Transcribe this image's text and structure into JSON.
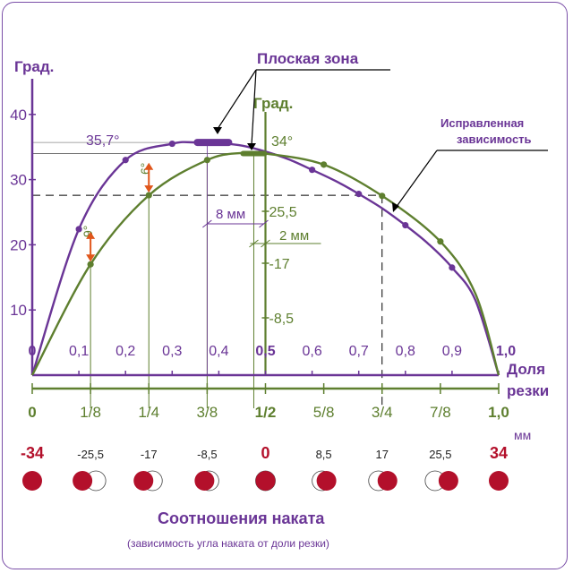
{
  "colors": {
    "purple": "#6a3596",
    "green": "#5e7f2f",
    "orange": "#e0561b",
    "ball_red": "#b3102b",
    "grid_gray": "#8a8a8a"
  },
  "chart_data": {
    "type": "line",
    "y_axis_label": "Град.",
    "y_ticks": [
      "40",
      "30",
      "20",
      "10"
    ],
    "y_tick_values": [
      40,
      30,
      20,
      10
    ],
    "ylim": [
      0,
      45
    ],
    "x_axis_label_line1": "Доля",
    "x_axis_label_line2": "резки",
    "x_ticks": [
      "0",
      "0,1",
      "0,2",
      "0,3",
      "0,4",
      "0,5",
      "0,6",
      "0,7",
      "0,8",
      "0,9",
      "1,0"
    ],
    "x_tick_values": [
      0,
      0.1,
      0.2,
      0.3,
      0.4,
      0.5,
      0.6,
      0.7,
      0.8,
      0.9,
      1.0
    ],
    "xlim": [
      0,
      1
    ],
    "fraction_ticks": [
      "0",
      "1/8",
      "1/4",
      "3/8",
      "1/2",
      "5/8",
      "3/4",
      "7/8",
      "1,0"
    ],
    "fraction_values": [
      0,
      0.125,
      0.25,
      0.375,
      0.5,
      0.625,
      0.75,
      0.875,
      1.0
    ],
    "mm_unit": "мм",
    "mm_ticks": [
      "-34",
      "-25,5",
      "-17",
      "-8,5",
      "0",
      "8,5",
      "17",
      "25,5",
      "34"
    ],
    "secondary_axis_label": "Град.",
    "secondary_ticks": [
      "25,5",
      "-17",
      "-8,5"
    ],
    "series": [
      {
        "color": "#6a3596",
        "x": [
          0,
          0.1,
          0.2,
          0.3,
          0.35,
          0.4,
          0.45,
          0.5,
          0.55,
          0.6,
          0.65,
          0.7,
          0.75,
          0.8,
          0.85,
          0.9,
          0.95,
          1.0
        ],
        "values": [
          0,
          22.4,
          33.0,
          35.5,
          35.7,
          35.6,
          35.2,
          34.3,
          33.1,
          31.5,
          29.8,
          27.8,
          25.6,
          23.0,
          20.1,
          16.5,
          11.5,
          0
        ],
        "markers_x": [
          0.1,
          0.2,
          0.3,
          0.6,
          0.7,
          0.8,
          0.9
        ],
        "markers_y": [
          22.4,
          33.0,
          35.5,
          31.5,
          27.8,
          23.0,
          16.5
        ]
      },
      {
        "name": "Исправленная зависимость",
        "color": "#5e7f2f",
        "x": [
          0,
          0.125,
          0.25,
          0.375,
          0.45,
          0.5,
          0.625,
          0.75,
          0.875,
          0.95,
          1.0
        ],
        "values": [
          0,
          17.0,
          27.6,
          33.0,
          34.1,
          34.0,
          32.3,
          27.5,
          20.5,
          12.5,
          0
        ],
        "markers_x": [
          0.125,
          0.25,
          0.375,
          0.625,
          0.75,
          0.875
        ],
        "markers_y": [
          17.0,
          27.6,
          33.0,
          32.3,
          27.5,
          20.5
        ]
      }
    ],
    "annotations": {
      "flat_zone": "Плоская зона",
      "corrected": "Исправленная зависимость",
      "corrected_line1": "Исправленная",
      "corrected_line2": "зависимость",
      "peak_purple": "35,7°",
      "peak_green": "34°",
      "diff_left": "9°",
      "diff_mid": "6°",
      "width_8mm": "8 мм",
      "width_2mm": "2 мм"
    }
  },
  "bottom": {
    "title": "Соотношения наката",
    "subtitle": "(зависимость угла наката от доли резки)"
  }
}
